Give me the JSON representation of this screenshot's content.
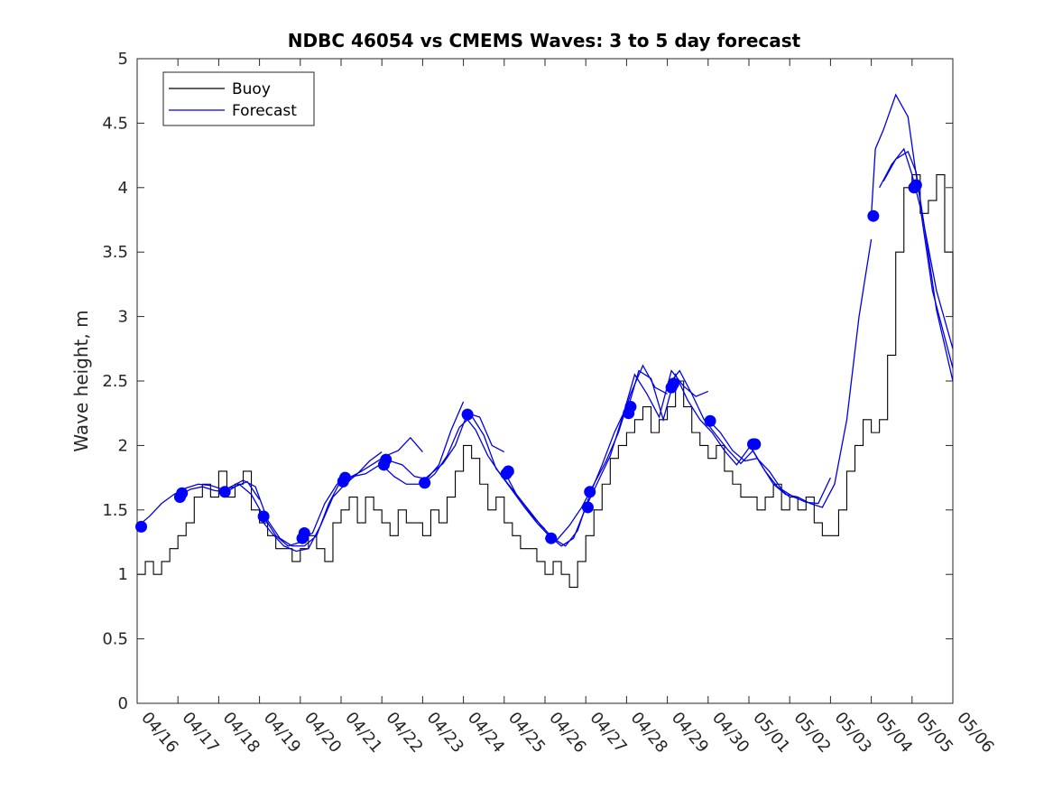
{
  "chart_data": {
    "type": "line",
    "title": "NDBC 46054 vs CMEMS Waves: 3 to 5 day forecast",
    "xlabel": "",
    "ylabel": "Wave height, m",
    "xlim": [
      0,
      20
    ],
    "ylim": [
      0,
      5
    ],
    "x_tick_positions": [
      0,
      1,
      2,
      3,
      4,
      5,
      6,
      7,
      8,
      9,
      10,
      11,
      12,
      13,
      14,
      15,
      16,
      17,
      18,
      19,
      20
    ],
    "x_tick_labels": [
      "04/16",
      "04/17",
      "04/18",
      "04/19",
      "04/20",
      "04/21",
      "04/22",
      "04/23",
      "04/24",
      "04/25",
      "04/26",
      "04/27",
      "04/28",
      "04/29",
      "04/30",
      "05/01",
      "05/02",
      "05/03",
      "05/04",
      "05/05",
      "05/06"
    ],
    "y_ticks": [
      0,
      0.5,
      1,
      1.5,
      2,
      2.5,
      3,
      3.5,
      4,
      4.5,
      5
    ],
    "y_tick_labels": [
      "0",
      "0.5",
      "1",
      "1.5",
      "2",
      "2.5",
      "3",
      "3.5",
      "4",
      "4.5",
      "5"
    ],
    "grid": false,
    "legend": {
      "placement": "top-left",
      "entries": [
        "Buoy",
        "Forecast"
      ]
    },
    "colors": {
      "buoy": "#000000",
      "forecast": "#0000e6",
      "markers": "#0000ff"
    },
    "buoy": {
      "name": "Buoy",
      "x": [
        0,
        0.2,
        0.4,
        0.6,
        0.8,
        1.0,
        1.2,
        1.4,
        1.6,
        1.8,
        2.0,
        2.2,
        2.4,
        2.6,
        2.8,
        3.0,
        3.2,
        3.4,
        3.6,
        3.8,
        4.0,
        4.2,
        4.4,
        4.6,
        4.8,
        5.0,
        5.2,
        5.4,
        5.6,
        5.8,
        6.0,
        6.2,
        6.4,
        6.6,
        6.8,
        7.0,
        7.2,
        7.4,
        7.6,
        7.8,
        8.0,
        8.2,
        8.4,
        8.6,
        8.8,
        9.0,
        9.2,
        9.4,
        9.6,
        9.8,
        10.0,
        10.2,
        10.4,
        10.6,
        10.8,
        11.0,
        11.2,
        11.4,
        11.6,
        11.8,
        12.0,
        12.2,
        12.4,
        12.6,
        12.8,
        13.0,
        13.2,
        13.4,
        13.6,
        13.8,
        14.0,
        14.2,
        14.4,
        14.6,
        14.8,
        15.0,
        15.2,
        15.4,
        15.6,
        15.8,
        16.0,
        16.2,
        16.4,
        16.6,
        16.8,
        17.0,
        17.2,
        17.4,
        17.6,
        17.8,
        18.0,
        18.2,
        18.4,
        18.6,
        18.8,
        19.0,
        19.2,
        19.4,
        19.6,
        19.8,
        20.0
      ],
      "values": [
        1.0,
        1.1,
        1.0,
        1.1,
        1.2,
        1.3,
        1.4,
        1.6,
        1.7,
        1.6,
        1.8,
        1.6,
        1.7,
        1.8,
        1.5,
        1.4,
        1.3,
        1.2,
        1.2,
        1.1,
        1.2,
        1.3,
        1.2,
        1.1,
        1.4,
        1.5,
        1.6,
        1.4,
        1.6,
        1.5,
        1.4,
        1.3,
        1.5,
        1.4,
        1.4,
        1.3,
        1.5,
        1.4,
        1.6,
        1.8,
        2.0,
        1.9,
        1.7,
        1.5,
        1.6,
        1.4,
        1.3,
        1.2,
        1.2,
        1.1,
        1.0,
        1.1,
        1.0,
        0.9,
        1.1,
        1.3,
        1.5,
        1.7,
        1.9,
        2.0,
        2.1,
        2.2,
        2.3,
        2.1,
        2.2,
        2.3,
        2.5,
        2.3,
        2.1,
        2.0,
        1.9,
        2.0,
        1.8,
        1.7,
        1.6,
        1.6,
        1.5,
        1.6,
        1.7,
        1.5,
        1.6,
        1.5,
        1.6,
        1.4,
        1.3,
        1.3,
        1.5,
        1.8,
        2.0,
        2.2,
        2.1,
        2.2,
        2.7,
        3.5,
        4.0,
        4.1,
        3.8,
        3.9,
        4.1,
        3.5,
        3.0
      ]
    },
    "forecast_series": [
      {
        "x": [
          0,
          0.3,
          0.6,
          0.9,
          1.2,
          1.5,
          1.8,
          2.1,
          2.4,
          2.7,
          3.0
        ],
        "values": [
          1.37,
          1.45,
          1.55,
          1.62,
          1.67,
          1.7,
          1.69,
          1.66,
          1.68,
          1.72,
          1.58
        ]
      },
      {
        "x": [
          1,
          1.3,
          1.6,
          1.9,
          2.2,
          2.5,
          2.8,
          3.1,
          3.4,
          3.7,
          4.0
        ],
        "values": [
          1.6,
          1.66,
          1.68,
          1.65,
          1.64,
          1.7,
          1.62,
          1.45,
          1.3,
          1.22,
          1.25
        ]
      },
      {
        "x": [
          2,
          2.3,
          2.6,
          2.9,
          3.2,
          3.5,
          3.8,
          4.1,
          4.4,
          4.7,
          5.0
        ],
        "values": [
          1.63,
          1.68,
          1.73,
          1.68,
          1.42,
          1.28,
          1.22,
          1.22,
          1.3,
          1.55,
          1.73
        ]
      },
      {
        "x": [
          3,
          3.3,
          3.6,
          3.9,
          4.2,
          4.5,
          4.8,
          5.1,
          5.4,
          5.7,
          6.0
        ],
        "values": [
          1.44,
          1.32,
          1.22,
          1.18,
          1.2,
          1.38,
          1.6,
          1.7,
          1.78,
          1.88,
          1.95
        ]
      },
      {
        "x": [
          4,
          4.3,
          4.6,
          4.9,
          5.2,
          5.5,
          5.8,
          6.1,
          6.4,
          6.7,
          7.0
        ],
        "values": [
          1.28,
          1.32,
          1.55,
          1.7,
          1.75,
          1.8,
          1.86,
          1.92,
          1.96,
          2.06,
          1.95
        ]
      },
      {
        "x": [
          5,
          5.3,
          5.6,
          5.9,
          6.2,
          6.5,
          6.8,
          7.1,
          7.4,
          7.7,
          8.0
        ],
        "values": [
          1.72,
          1.76,
          1.78,
          1.84,
          1.88,
          1.85,
          1.76,
          1.74,
          1.85,
          2.12,
          2.34
        ]
      },
      {
        "x": [
          6,
          6.3,
          6.6,
          6.9,
          7.2,
          7.5,
          7.8,
          8.1,
          8.4,
          8.7,
          9.0
        ],
        "values": [
          1.85,
          1.76,
          1.7,
          1.7,
          1.78,
          1.86,
          2.0,
          2.25,
          2.22,
          2.0,
          1.95
        ]
      },
      {
        "x": [
          7,
          7.3,
          7.6,
          7.9,
          8.2,
          8.5,
          8.8,
          9.1,
          9.4,
          9.7,
          10.0
        ],
        "values": [
          1.7,
          1.78,
          1.92,
          2.14,
          2.23,
          2.08,
          1.82,
          1.7,
          1.58,
          1.45,
          1.35
        ]
      },
      {
        "x": [
          8,
          8.3,
          8.6,
          8.9,
          9.2,
          9.5,
          9.8,
          10.1,
          10.4,
          10.7,
          11.0
        ],
        "values": [
          2.24,
          2.12,
          1.92,
          1.78,
          1.65,
          1.52,
          1.4,
          1.3,
          1.22,
          1.28,
          1.52
        ]
      },
      {
        "x": [
          9,
          9.3,
          9.6,
          9.9,
          10.2,
          10.5,
          10.8,
          11.1,
          11.4,
          11.7,
          12.0
        ],
        "values": [
          1.8,
          1.62,
          1.5,
          1.38,
          1.28,
          1.22,
          1.34,
          1.62,
          1.85,
          2.1,
          2.3
        ]
      },
      {
        "x": [
          10,
          10.3,
          10.6,
          10.9,
          11.2,
          11.5,
          11.8,
          12.1,
          12.4,
          12.7,
          13.0
        ],
        "values": [
          1.28,
          1.27,
          1.38,
          1.52,
          1.7,
          1.88,
          2.1,
          2.4,
          2.62,
          2.45,
          2.4
        ]
      },
      {
        "x": [
          11,
          11.3,
          11.6,
          11.9,
          12.2,
          12.5,
          12.8,
          13.1,
          13.4,
          13.7,
          14.0
        ],
        "values": [
          1.52,
          1.72,
          1.92,
          2.22,
          2.55,
          2.4,
          2.22,
          2.58,
          2.46,
          2.38,
          2.42
        ]
      },
      {
        "x": [
          12,
          12.3,
          12.6,
          12.9,
          13.2,
          13.5,
          13.8,
          14.1,
          14.4,
          14.7,
          15.0
        ],
        "values": [
          2.25,
          2.58,
          2.52,
          2.2,
          2.55,
          2.35,
          2.2,
          2.1,
          1.96,
          1.85,
          1.98
        ]
      },
      {
        "x": [
          13,
          13.3,
          13.6,
          13.9,
          14.2,
          14.5,
          14.8,
          15.1,
          15.4,
          15.7,
          16.0
        ],
        "values": [
          2.46,
          2.58,
          2.4,
          2.2,
          2.08,
          1.96,
          1.86,
          1.96,
          1.8,
          1.68,
          1.6
        ]
      },
      {
        "x": [
          14,
          14.3,
          14.6,
          14.9,
          15.2,
          15.5,
          15.8,
          16.1,
          16.4,
          16.7,
          17.0
        ],
        "values": [
          2.2,
          2.1,
          1.96,
          1.88,
          1.9,
          1.8,
          1.66,
          1.6,
          1.56,
          1.55,
          1.75
        ]
      },
      {
        "x": [
          15,
          15.3,
          15.6,
          15.9,
          16.2,
          16.5,
          16.8,
          17.1,
          17.4,
          17.7,
          18.0
        ],
        "values": [
          2.01,
          1.85,
          1.7,
          1.62,
          1.6,
          1.55,
          1.52,
          1.7,
          2.2,
          3.0,
          3.6
        ]
      },
      {
        "x": [
          18,
          18.1,
          18.3,
          18.6,
          18.9,
          19.1,
          19.3,
          19.6,
          20.0
        ],
        "values": [
          3.78,
          4.3,
          4.45,
          4.72,
          4.55,
          4.1,
          3.7,
          3.2,
          2.75
        ]
      },
      {
        "x": [
          18.2,
          18.5,
          18.8,
          19.0,
          19.2,
          19.5,
          20.0
        ],
        "values": [
          4.0,
          4.18,
          4.3,
          4.1,
          3.85,
          3.2,
          2.6
        ]
      },
      {
        "x": [
          18.3,
          18.6,
          18.9,
          19.1,
          19.3,
          19.6,
          20.0
        ],
        "values": [
          4.05,
          4.22,
          4.28,
          4.12,
          3.7,
          3.05,
          2.5
        ]
      }
    ],
    "markers": {
      "x": [
        0.1,
        1.05,
        1.1,
        2.15,
        3.1,
        4.05,
        4.1,
        5.05,
        5.1,
        6.05,
        6.1,
        7.05,
        8.1,
        9.05,
        9.1,
        10.15,
        11.05,
        11.1,
        12.05,
        12.1,
        13.1,
        13.15,
        14.05,
        15.1,
        15.15,
        18.05,
        19.05,
        19.1
      ],
      "values": [
        1.37,
        1.6,
        1.63,
        1.64,
        1.45,
        1.28,
        1.32,
        1.72,
        1.75,
        1.85,
        1.89,
        1.71,
        2.24,
        1.78,
        1.8,
        1.28,
        1.52,
        1.64,
        2.25,
        2.3,
        2.45,
        2.48,
        2.19,
        2.01,
        2.01,
        3.78,
        4.0,
        4.02
      ]
    }
  }
}
